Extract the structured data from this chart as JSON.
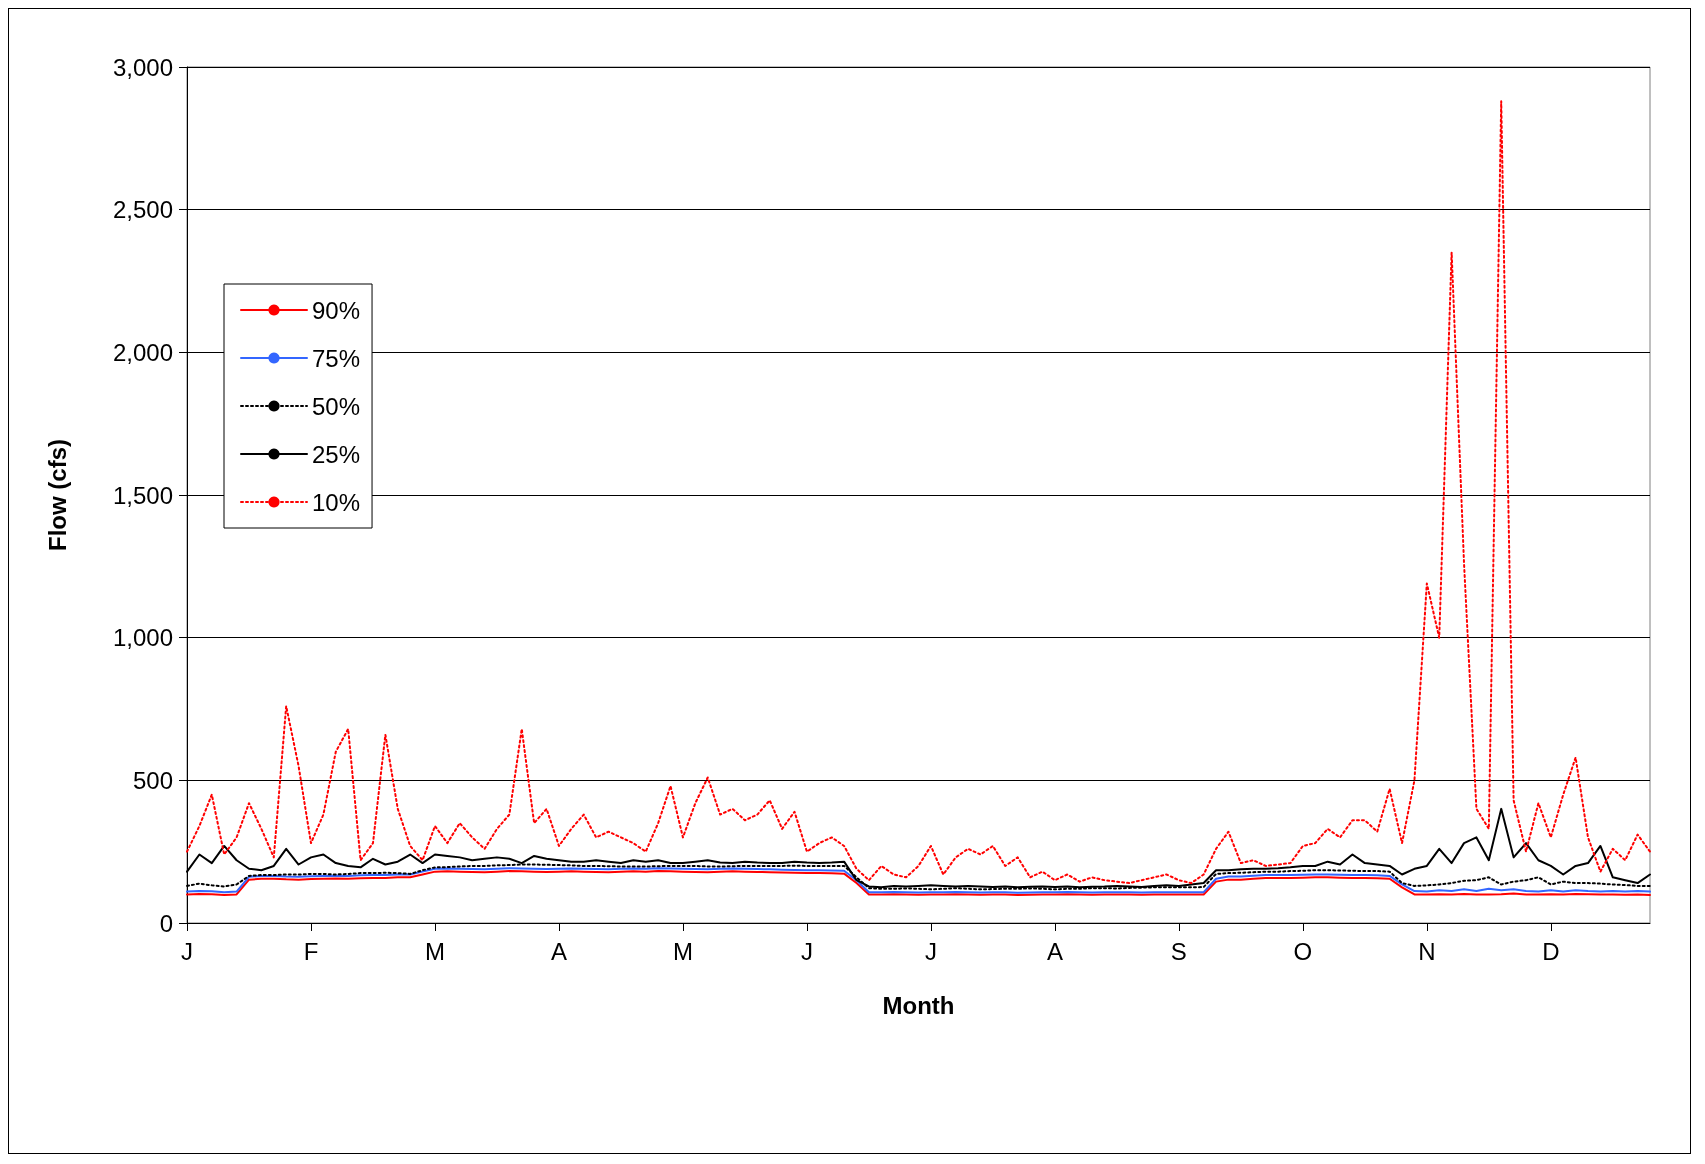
{
  "chart_data": {
    "type": "line",
    "xlabel": "Month",
    "ylabel": "Flow (cfs)",
    "categories": [
      "J",
      null,
      null,
      null,
      null,
      null,
      null,
      null,
      null,
      null,
      "F",
      null,
      null,
      null,
      null,
      null,
      null,
      null,
      null,
      null,
      "M",
      null,
      null,
      null,
      null,
      null,
      null,
      null,
      null,
      null,
      "A",
      null,
      null,
      null,
      null,
      null,
      null,
      null,
      null,
      null,
      "M",
      null,
      null,
      null,
      null,
      null,
      null,
      null,
      null,
      null,
      "J",
      null,
      null,
      null,
      null,
      null,
      null,
      null,
      null,
      null,
      "J",
      null,
      null,
      null,
      null,
      null,
      null,
      null,
      null,
      null,
      "A",
      null,
      null,
      null,
      null,
      null,
      null,
      null,
      null,
      null,
      "S",
      null,
      null,
      null,
      null,
      null,
      null,
      null,
      null,
      null,
      "O",
      null,
      null,
      null,
      null,
      null,
      null,
      null,
      null,
      null,
      "N",
      null,
      null,
      null,
      null,
      null,
      null,
      null,
      null,
      null,
      "D",
      null,
      null,
      null,
      null,
      null,
      null,
      null,
      null
    ],
    "ylim": [
      0,
      3000
    ],
    "yticks": [
      0,
      500,
      {
        "value": 1000,
        "label": "1,000"
      },
      {
        "value": 1500,
        "label": "1,500"
      },
      {
        "value": 2000,
        "label": "2,000"
      },
      {
        "value": 2500,
        "label": "2,500"
      },
      {
        "value": 3000,
        "label": "3,000"
      }
    ],
    "grid": "y",
    "legend": "left",
    "marker": "none",
    "series": [
      {
        "name": "90%",
        "color": "#ff0000",
        "line_style": "solid",
        "values": [
          100,
          102,
          101,
          98,
          100,
          152,
          155,
          155,
          153,
          152,
          154,
          155,
          156,
          155,
          157,
          158,
          158,
          160,
          160,
          170,
          180,
          181,
          180,
          179,
          178,
          180,
          182,
          181,
          180,
          179,
          180,
          181,
          180,
          179,
          178,
          180,
          181,
          180,
          182,
          181,
          180,
          179,
          178,
          180,
          181,
          180,
          179,
          178,
          177,
          176,
          175,
          175,
          174,
          173,
          140,
          100,
          100,
          101,
          100,
          99,
          100,
          100,
          101,
          100,
          99,
          100,
          100,
          98,
          99,
          100,
          100,
          101,
          100,
          99,
          100,
          100,
          100,
          99,
          100,
          100,
          100,
          100,
          100,
          145,
          152,
          152,
          155,
          158,
          158,
          158,
          159,
          160,
          160,
          159,
          158,
          158,
          157,
          155,
          125,
          100,
          100,
          101,
          100,
          102,
          100,
          100,
          101,
          103,
          100,
          100,
          101,
          100,
          102,
          101,
          100,
          100,
          99,
          100,
          98
        ]
      },
      {
        "name": "75%",
        "color": "#3366ff",
        "line_style": "solid",
        "values": [
          110,
          112,
          111,
          108,
          110,
          162,
          165,
          165,
          163,
          162,
          164,
          165,
          166,
          165,
          167,
          168,
          168,
          170,
          170,
          180,
          190,
          191,
          190,
          189,
          188,
          190,
          192,
          191,
          190,
          189,
          190,
          191,
          190,
          189,
          188,
          190,
          191,
          190,
          192,
          191,
          190,
          189,
          188,
          190,
          191,
          190,
          189,
          188,
          187,
          186,
          185,
          185,
          184,
          183,
          150,
          108,
          108,
          109,
          108,
          107,
          108,
          108,
          109,
          108,
          107,
          108,
          108,
          106,
          107,
          108,
          108,
          109,
          108,
          107,
          108,
          108,
          108,
          107,
          108,
          108,
          108,
          108,
          108,
          155,
          163,
          163,
          166,
          168,
          168,
          168,
          169,
          170,
          170,
          169,
          168,
          168,
          167,
          165,
          135,
          112,
          110,
          115,
          112,
          118,
          112,
          120,
          115,
          118,
          112,
          110,
          115,
          110,
          115,
          112,
          110,
          112,
          110,
          112,
          110
        ]
      },
      {
        "name": "50%",
        "color": "#000000",
        "line_style": "dotted",
        "values": [
          130,
          138,
          132,
          128,
          135,
          165,
          168,
          168,
          170,
          170,
          172,
          172,
          170,
          172,
          175,
          175,
          176,
          175,
          172,
          185,
          195,
          196,
          198,
          200,
          200,
          202,
          203,
          205,
          205,
          204,
          203,
          202,
          200,
          200,
          199,
          198,
          198,
          198,
          199,
          200,
          200,
          200,
          198,
          198,
          199,
          200,
          200,
          200,
          200,
          201,
          200,
          200,
          200,
          200,
          160,
          122,
          120,
          120,
          121,
          120,
          118,
          120,
          122,
          120,
          118,
          119,
          120,
          120,
          121,
          120,
          118,
          120,
          120,
          122,
          122,
          121,
          123,
          124,
          125,
          125,
          125,
          125,
          126,
          172,
          175,
          176,
          178,
          180,
          180,
          182,
          183,
          185,
          185,
          184,
          183,
          182,
          182,
          180,
          140,
          130,
          132,
          135,
          140,
          148,
          150,
          160,
          135,
          145,
          150,
          160,
          135,
          145,
          140,
          140,
          138,
          135,
          133,
          130,
          130
        ]
      },
      {
        "name": "25%",
        "color": "#000000",
        "line_style": "solid",
        "values": [
          180,
          240,
          210,
          270,
          220,
          190,
          185,
          200,
          260,
          205,
          230,
          240,
          210,
          200,
          195,
          225,
          205,
          215,
          240,
          210,
          240,
          235,
          230,
          220,
          225,
          230,
          225,
          210,
          235,
          225,
          220,
          215,
          215,
          220,
          215,
          210,
          220,
          215,
          220,
          210,
          210,
          215,
          220,
          212,
          210,
          215,
          212,
          210,
          210,
          215,
          212,
          210,
          212,
          215,
          150,
          128,
          125,
          130,
          128,
          130,
          132,
          130,
          128,
          130,
          128,
          126,
          128,
          125,
          127,
          128,
          126,
          128,
          125,
          127,
          128,
          130,
          128,
          126,
          130,
          132,
          130,
          135,
          140,
          185,
          185,
          188,
          190,
          190,
          192,
          195,
          200,
          200,
          215,
          205,
          240,
          210,
          205,
          200,
          170,
          190,
          200,
          260,
          210,
          280,
          300,
          220,
          400,
          230,
          280,
          220,
          200,
          170,
          200,
          210,
          270,
          160,
          150,
          140,
          170
        ]
      },
      {
        "name": "10%",
        "color": "#ff0000",
        "line_style": "dotted",
        "values": [
          250,
          340,
          450,
          240,
          300,
          420,
          330,
          230,
          760,
          550,
          280,
          380,
          600,
          680,
          220,
          280,
          660,
          400,
          270,
          220,
          340,
          280,
          350,
          300,
          260,
          330,
          380,
          680,
          350,
          400,
          270,
          330,
          380,
          300,
          320,
          300,
          280,
          250,
          350,
          480,
          300,
          420,
          510,
          380,
          400,
          360,
          380,
          430,
          330,
          390,
          250,
          280,
          300,
          270,
          190,
          150,
          200,
          170,
          160,
          200,
          270,
          170,
          230,
          260,
          240,
          270,
          200,
          230,
          160,
          180,
          150,
          170,
          145,
          160,
          150,
          145,
          140,
          150,
          160,
          170,
          150,
          140,
          170,
          260,
          320,
          210,
          220,
          200,
          205,
          210,
          270,
          280,
          330,
          300,
          360,
          360,
          320,
          470,
          280,
          500,
          1190,
          1000,
          2350,
          1260,
          400,
          330,
          2880,
          430,
          250,
          420,
          300,
          450,
          580,
          300,
          180,
          260,
          220,
          310,
          250
        ]
      }
    ]
  }
}
